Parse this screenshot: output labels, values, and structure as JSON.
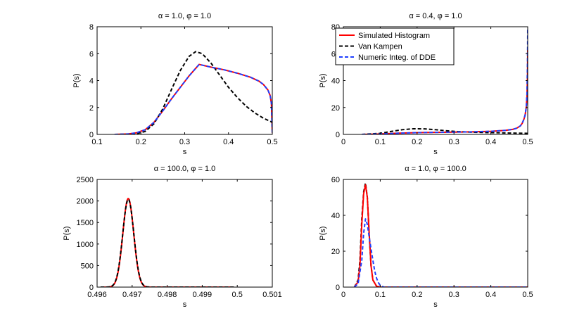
{
  "chart_data": [
    {
      "id": "a",
      "type": "line",
      "title": "α = 1.0, φ = 1.0",
      "xlabel": "s",
      "ylabel": "P(s)",
      "xlim": [
        0.1,
        0.5
      ],
      "ylim": [
        0,
        8
      ],
      "xticks": [
        0.1,
        0.2,
        0.3,
        0.4,
        0.5
      ],
      "xticklabels": [
        "0.1",
        "0.2",
        "0.3",
        "0.4",
        "0.5"
      ],
      "yticks": [
        0,
        2,
        4,
        6,
        8
      ],
      "yticklabels": [
        "0",
        "2",
        "4",
        "6",
        "8"
      ],
      "series": [
        {
          "name": "Simulated Histogram",
          "color": "#ff0000",
          "style": "solid",
          "x": [
            0.14,
            0.17,
            0.19,
            0.21,
            0.23,
            0.25,
            0.27,
            0.29,
            0.31,
            0.333,
            0.36,
            0.39,
            0.42,
            0.45,
            0.47,
            0.48,
            0.49,
            0.495,
            0.498,
            0.5
          ],
          "y": [
            0,
            0.03,
            0.12,
            0.35,
            0.9,
            1.75,
            2.65,
            3.5,
            4.35,
            5.2,
            5.0,
            4.8,
            4.55,
            4.25,
            3.95,
            3.7,
            3.3,
            2.9,
            2.3,
            0.1
          ]
        },
        {
          "name": "Van Kampen",
          "color": "#000000",
          "style": "dashed",
          "x": [
            0.14,
            0.17,
            0.19,
            0.21,
            0.23,
            0.25,
            0.27,
            0.29,
            0.31,
            0.325,
            0.34,
            0.36,
            0.38,
            0.4,
            0.42,
            0.44,
            0.46,
            0.48,
            0.5
          ],
          "y": [
            0,
            0.01,
            0.05,
            0.22,
            0.8,
            1.9,
            3.35,
            4.75,
            5.8,
            6.15,
            6.0,
            5.3,
            4.4,
            3.5,
            2.75,
            2.1,
            1.6,
            1.2,
            0.9
          ]
        },
        {
          "name": "Numeric Integ. of DDE",
          "color": "#1f3fff",
          "style": "dashed",
          "x": [
            0.14,
            0.17,
            0.19,
            0.21,
            0.23,
            0.25,
            0.27,
            0.29,
            0.31,
            0.333,
            0.36,
            0.39,
            0.42,
            0.45,
            0.47,
            0.48,
            0.49,
            0.495,
            0.498,
            0.5
          ],
          "y": [
            0,
            0.03,
            0.12,
            0.35,
            0.9,
            1.75,
            2.65,
            3.5,
            4.35,
            5.2,
            5.0,
            4.8,
            4.55,
            4.25,
            3.95,
            3.7,
            3.3,
            2.9,
            2.3,
            0.1
          ]
        }
      ]
    },
    {
      "id": "b",
      "type": "line",
      "title": "α = 0.4, φ = 1.0",
      "xlabel": "s",
      "ylabel": "P(s)",
      "xlim": [
        0,
        0.5
      ],
      "ylim": [
        0,
        80
      ],
      "xticks": [
        0,
        0.1,
        0.2,
        0.3,
        0.4,
        0.5
      ],
      "xticklabels": [
        "0",
        "0.1",
        "0.2",
        "0.3",
        "0.4",
        "0.5"
      ],
      "yticks": [
        0,
        20,
        40,
        60,
        80
      ],
      "yticklabels": [
        "0",
        "20",
        "40",
        "60",
        "80"
      ],
      "legend": {
        "position": "top-left",
        "entries": [
          "Simulated Histogram",
          "Van Kampen",
          "Numeric Integ. of DDE"
        ]
      },
      "series": [
        {
          "name": "Simulated Histogram",
          "color": "#ff0000",
          "style": "solid",
          "x": [
            0.05,
            0.1,
            0.15,
            0.2,
            0.25,
            0.3,
            0.35,
            0.4,
            0.44,
            0.46,
            0.47,
            0.48,
            0.485,
            0.49,
            0.493,
            0.496,
            0.498,
            0.4995,
            0.5
          ],
          "y": [
            0,
            0.3,
            0.9,
            1.3,
            1.5,
            1.7,
            1.9,
            2.3,
            3.0,
            3.8,
            4.6,
            6.3,
            8.2,
            11.5,
            14.5,
            20,
            28,
            45,
            64
          ]
        },
        {
          "name": "Van Kampen",
          "color": "#000000",
          "style": "dashed",
          "x": [
            0.05,
            0.1,
            0.13,
            0.16,
            0.19,
            0.22,
            0.25,
            0.28,
            0.31,
            0.35,
            0.4,
            0.45,
            0.5
          ],
          "y": [
            0,
            0.8,
            2.2,
            3.5,
            4.2,
            4.1,
            3.5,
            2.7,
            2.1,
            1.6,
            1.3,
            1.0,
            0.8
          ]
        },
        {
          "name": "Numeric Integ. of DDE",
          "color": "#1f3fff",
          "style": "dashed",
          "x": [
            0.05,
            0.1,
            0.15,
            0.2,
            0.25,
            0.3,
            0.35,
            0.4,
            0.44,
            0.46,
            0.47,
            0.48,
            0.485,
            0.49,
            0.493,
            0.496,
            0.498,
            0.4995,
            0.5
          ],
          "y": [
            0,
            0.3,
            0.9,
            1.3,
            1.5,
            1.7,
            1.9,
            2.3,
            3.0,
            3.8,
            4.6,
            6.3,
            8.2,
            11.5,
            14.5,
            20,
            30,
            55,
            79
          ]
        }
      ]
    },
    {
      "id": "c",
      "type": "line",
      "title": "α = 100.0, φ = 1.0",
      "xlabel": "s",
      "ylabel": "P(s)",
      "xlim": [
        0.496,
        0.501
      ],
      "ylim": [
        0,
        2500
      ],
      "xticks": [
        0.496,
        0.497,
        0.498,
        0.499,
        0.5,
        0.501
      ],
      "xticklabels": [
        "0.496",
        "0.497",
        "0.498",
        "0.499",
        "0.5",
        "0.501"
      ],
      "yticks": [
        0,
        500,
        1000,
        1500,
        2000,
        2500
      ],
      "yticklabels": [
        "0",
        "500",
        "1000",
        "1500",
        "2000",
        "2500"
      ],
      "series": [
        {
          "name": "Simulated Histogram",
          "color": "#ff0000",
          "style": "solid",
          "peak": 2060,
          "mu": 0.49689,
          "sigma": 0.000155,
          "xrange": [
            0.4961,
            0.4999
          ]
        },
        {
          "name": "Van Kampen",
          "color": "#000000",
          "style": "dashed",
          "peak": 2040,
          "mu": 0.49689,
          "sigma": 0.000158,
          "xrange": [
            0.4961,
            0.4999
          ]
        }
      ]
    },
    {
      "id": "d",
      "type": "line",
      "title": "α = 1.0, φ = 100.0",
      "xlabel": "s",
      "ylabel": "P(s)",
      "xlim": [
        0,
        0.5
      ],
      "ylim": [
        0,
        60
      ],
      "xticks": [
        0,
        0.1,
        0.2,
        0.3,
        0.4,
        0.5
      ],
      "xticklabels": [
        "0",
        "0.1",
        "0.2",
        "0.3",
        "0.4",
        "0.5"
      ],
      "yticks": [
        0,
        20,
        40,
        60
      ],
      "yticklabels": [
        "0",
        "20",
        "40",
        "60"
      ],
      "series": [
        {
          "name": "Van Kampen",
          "color": "#000000",
          "style": "dashed",
          "x": [
            0.03,
            0.04,
            0.045,
            0.05,
            0.055,
            0.06,
            0.065,
            0.07,
            0.075,
            0.08,
            0.09,
            0.1,
            0.5
          ],
          "y": [
            0,
            4,
            15,
            38,
            53,
            58,
            50,
            30,
            12,
            4,
            0.5,
            0,
            0
          ]
        },
        {
          "name": "Simulated Histogram",
          "color": "#ff0000",
          "style": "solid",
          "x": [
            0.03,
            0.04,
            0.045,
            0.05,
            0.055,
            0.06,
            0.065,
            0.07,
            0.075,
            0.08,
            0.09,
            0.1,
            0.5
          ],
          "y": [
            0,
            3,
            12,
            35,
            52,
            57,
            50,
            30,
            12,
            4,
            0.5,
            0,
            0
          ]
        },
        {
          "name": "Numeric Integ. of DDE",
          "color": "#1f3fff",
          "style": "dashed",
          "x": [
            0.03,
            0.04,
            0.05,
            0.055,
            0.06,
            0.065,
            0.07,
            0.08,
            0.085,
            0.09,
            0.095,
            0.1,
            0.11,
            0.5
          ],
          "y": [
            0,
            2,
            15,
            30,
            38,
            35,
            28,
            15,
            9,
            5,
            2.5,
            1,
            0,
            0
          ]
        }
      ]
    }
  ]
}
